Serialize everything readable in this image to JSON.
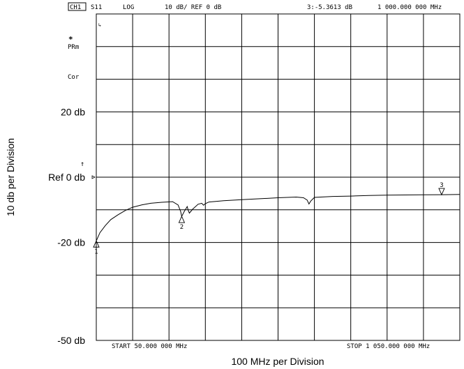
{
  "header": {
    "channel": "CH1",
    "parameter": "S11",
    "format": "LOG",
    "scale_ref": "10 dB/ REF 0 dB",
    "marker_readout": "3:-5.3613 dB",
    "marker_freq": "1 000.000 000 MHz"
  },
  "status": {
    "star": "*",
    "prm": "PRm",
    "cor": "Cor",
    "ref_arrow": "↑"
  },
  "axis": {
    "y_title": "10 db per Division",
    "x_title": "100 MHz per Division",
    "start_label": "START  50.000 000 MHz",
    "stop_label": "STOP 1 050.000 000 MHz"
  },
  "chart_data": {
    "type": "line",
    "title": "",
    "xlabel": "100 MHz per Division",
    "ylabel": "10 db per Division",
    "x_unit": "MHz",
    "y_unit": "dB",
    "xlim": [
      50,
      1050
    ],
    "ylim": [
      -50,
      50
    ],
    "grid": true,
    "y_tick_labels": [
      {
        "value": 20,
        "label": "20 db"
      },
      {
        "value": 0,
        "label": "Ref 0 db"
      },
      {
        "value": -20,
        "label": "-20 db"
      },
      {
        "value": -50,
        "label": "-50 db"
      }
    ],
    "series": [
      {
        "x": [
          50,
          60,
          75,
          90,
          110,
          130,
          150,
          175,
          200,
          230,
          260,
          275,
          282,
          285,
          292,
          300,
          303,
          306,
          315,
          330,
          340,
          345,
          350,
          360,
          400,
          450,
          500,
          550,
          600,
          620,
          630,
          635,
          640,
          650,
          700,
          750,
          800,
          850,
          900,
          950,
          1000,
          1050
        ],
        "y": [
          -19.5,
          -17.0,
          -14.8,
          -13.0,
          -11.5,
          -10.2,
          -9.2,
          -8.5,
          -8.0,
          -7.7,
          -7.5,
          -8.5,
          -10.5,
          -12.0,
          -10.5,
          -9.0,
          -10.2,
          -11.0,
          -9.8,
          -8.3,
          -8.0,
          -8.6,
          -8.1,
          -7.6,
          -7.2,
          -6.9,
          -6.6,
          -6.3,
          -6.1,
          -6.3,
          -7.0,
          -8.2,
          -7.3,
          -6.2,
          -5.9,
          -5.8,
          -5.6,
          -5.5,
          -5.45,
          -5.4,
          -5.36,
          -5.3
        ]
      }
    ],
    "markers": [
      {
        "id": "1",
        "x": 50,
        "y": -19.5
      },
      {
        "id": "2",
        "x": 285,
        "y": -12.0
      },
      {
        "id": "3",
        "x": 1000,
        "y": -5.3613
      }
    ]
  }
}
